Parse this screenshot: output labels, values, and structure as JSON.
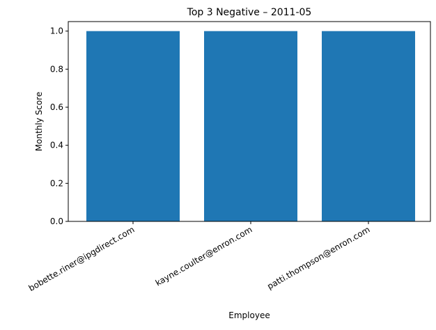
{
  "chart_data": {
    "type": "bar",
    "title": "Top 3 Negative – 2011-05",
    "xlabel": "Employee",
    "ylabel": "Monthly Score",
    "categories": [
      "bobette.riner@ipgdirect.com",
      "kayne.coulter@enron.com",
      "patti.thompson@enron.com"
    ],
    "values": [
      1.0,
      1.0,
      1.0
    ],
    "ylim": [
      0,
      1.05
    ],
    "yticks": [
      "0.0",
      "0.2",
      "0.4",
      "0.6",
      "0.8",
      "1.0"
    ],
    "grid": false,
    "bar_color": "#1f77b4"
  }
}
